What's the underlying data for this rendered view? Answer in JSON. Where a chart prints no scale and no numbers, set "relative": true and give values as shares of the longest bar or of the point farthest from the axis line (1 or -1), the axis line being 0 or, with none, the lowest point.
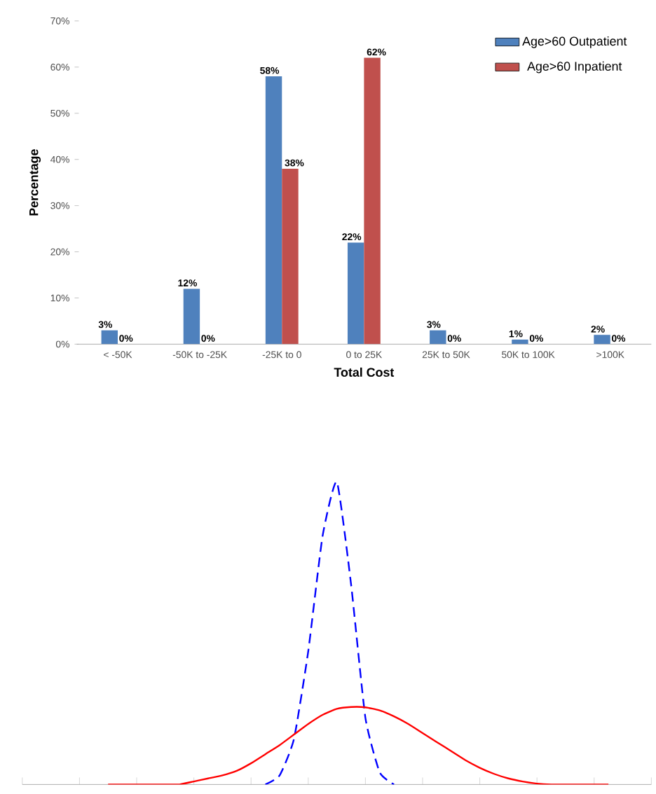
{
  "chart_data": [
    {
      "type": "bar",
      "xlabel": "Total Cost",
      "ylabel": "Percentage",
      "categories": [
        "< -50K",
        "-50K to -25K",
        "-25K to 0",
        "0 to 25K",
        "25K to 50K",
        "50K to 100K",
        ">100K"
      ],
      "series": [
        {
          "name": "Age>60 Outpatient",
          "color": "#4f81bd",
          "values": [
            3,
            12,
            58,
            22,
            3,
            1,
            2
          ],
          "value_labels": [
            "3%",
            "12%",
            "58%",
            "22%",
            "3%",
            "1%",
            "2%"
          ]
        },
        {
          "name": "Age>60 Inpatient",
          "color": "#c0504d",
          "values": [
            0,
            0,
            38,
            62,
            0,
            0,
            0
          ],
          "value_labels": [
            "0%",
            "0%",
            "38%",
            "62%",
            "0%",
            "0%",
            "0%"
          ]
        }
      ],
      "ylim": [
        0,
        70
      ],
      "yticks": [
        {
          "value": 0,
          "label": "0%"
        },
        {
          "value": 10,
          "label": "10%"
        },
        {
          "value": 20,
          "label": "20%"
        },
        {
          "value": 30,
          "label": "30%"
        },
        {
          "value": 40,
          "label": "40%"
        },
        {
          "value": 50,
          "label": "50%"
        },
        {
          "value": 60,
          "label": "60%"
        },
        {
          "value": 70,
          "label": "70%"
        }
      ],
      "legend": "top right"
    },
    {
      "type": "line",
      "relative": true,
      "marker": "none",
      "categories": [
        null,
        null,
        null,
        null,
        null,
        null,
        null,
        null,
        null,
        null,
        null,
        null,
        null,
        null,
        null,
        null,
        null,
        null,
        null,
        null,
        null,
        null,
        null,
        null,
        null,
        null,
        null,
        null,
        null,
        null,
        null,
        null,
        null,
        null,
        null,
        null,
        null,
        null,
        null,
        null,
        null,
        null,
        null,
        null,
        null
      ],
      "series": [
        {
          "color": "#0000ff",
          "line_style": "dashed",
          "values": [
            null,
            null,
            null,
            null,
            null,
            null,
            null,
            null,
            null,
            null,
            null,
            null,
            null,
            null,
            null,
            null,
            null,
            0,
            0.03,
            0.15,
            0.44,
            0.82,
            1,
            0.66,
            0.22,
            0.04,
            0,
            null,
            null,
            null,
            null,
            null,
            null,
            null,
            null,
            null,
            null,
            null,
            null,
            null,
            null,
            null,
            null,
            null,
            null
          ]
        },
        {
          "color": "#ff0000",
          "line_style": "solid",
          "values": [
            null,
            null,
            null,
            null,
            null,
            null,
            0,
            0,
            0,
            0,
            0,
            0,
            0.01,
            0.02,
            0.03,
            0.045,
            0.07,
            0.1,
            0.13,
            0.165,
            0.2,
            0.23,
            0.25,
            0.256,
            0.255,
            0.245,
            0.225,
            0.2,
            0.17,
            0.14,
            0.11,
            0.08,
            0.055,
            0.035,
            0.02,
            0.01,
            0.003,
            0,
            0,
            0,
            0,
            0,
            null,
            null,
            null
          ]
        }
      ]
    }
  ]
}
